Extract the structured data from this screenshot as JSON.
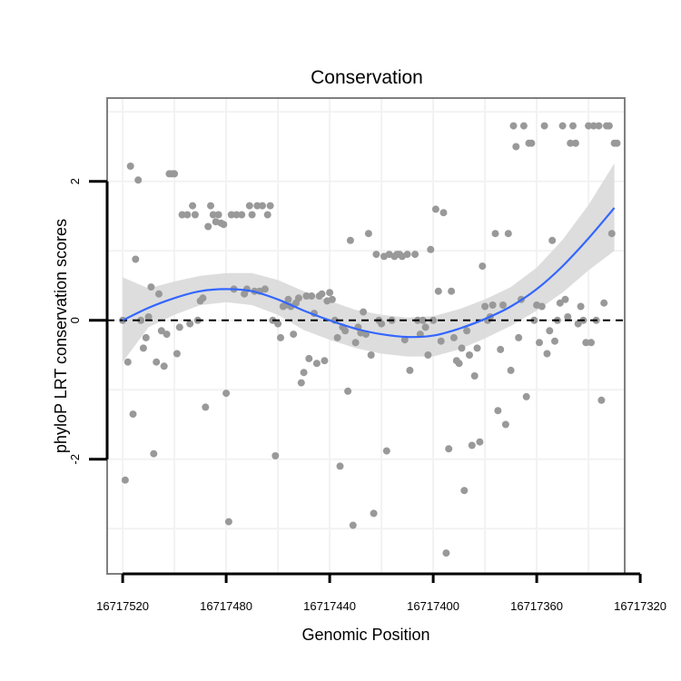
{
  "chart_data": {
    "type": "scatter",
    "title": "Conservation",
    "xlabel": "Genomic Position",
    "ylabel": "phyloP LRT conservation scores",
    "x_reversed": true,
    "xlim": [
      16717526,
      16717326
    ],
    "ylim": [
      -3.65,
      3.2
    ],
    "x_ticks": [
      16717520,
      16717480,
      16717440,
      16717400,
      16717360,
      16717320
    ],
    "x_tick_labels": [
      "16717520",
      "16717480",
      "16717440",
      "16717400",
      "16717360",
      "16717320"
    ],
    "y_ticks": [
      2,
      0,
      -2
    ],
    "y_tick_labels": [
      "2",
      "0",
      "-2"
    ],
    "grid": true,
    "reference_line": {
      "y": 0,
      "style": "dashed",
      "color": "#000000"
    },
    "colors": {
      "points": "#999999",
      "smooth": "#3366ff",
      "ribbon": "#d9d9d9",
      "grid": "#f2f2f2",
      "frame": "#7f7f7f",
      "axis": "#000000"
    },
    "points": [
      {
        "x": 16717520,
        "y": 0.0
      },
      {
        "x": 16717519,
        "y": -2.3
      },
      {
        "x": 16717518,
        "y": -0.6
      },
      {
        "x": 16717517,
        "y": 2.22
      },
      {
        "x": 16717516,
        "y": -1.35
      },
      {
        "x": 16717515,
        "y": 0.88
      },
      {
        "x": 16717514,
        "y": 2.02
      },
      {
        "x": 16717513,
        "y": 0.0
      },
      {
        "x": 16717512,
        "y": -0.4
      },
      {
        "x": 16717511,
        "y": -0.25
      },
      {
        "x": 16717510,
        "y": 0.05
      },
      {
        "x": 16717509,
        "y": 0.48
      },
      {
        "x": 16717508,
        "y": -1.92
      },
      {
        "x": 16717507,
        "y": -0.6
      },
      {
        "x": 16717506,
        "y": 0.38
      },
      {
        "x": 16717505,
        "y": -0.15
      },
      {
        "x": 16717504,
        "y": -0.66
      },
      {
        "x": 16717503,
        "y": -0.2
      },
      {
        "x": 16717502,
        "y": 2.11
      },
      {
        "x": 16717501,
        "y": 2.11
      },
      {
        "x": 16717500,
        "y": 2.11
      },
      {
        "x": 16717499,
        "y": -0.48
      },
      {
        "x": 16717498,
        "y": -0.1
      },
      {
        "x": 16717497,
        "y": 1.52
      },
      {
        "x": 16717495,
        "y": 1.52
      },
      {
        "x": 16717494,
        "y": -0.05
      },
      {
        "x": 16717493,
        "y": 1.65
      },
      {
        "x": 16717492,
        "y": 1.52
      },
      {
        "x": 16717491,
        "y": 0.0
      },
      {
        "x": 16717490,
        "y": 0.28
      },
      {
        "x": 16717489,
        "y": 0.32
      },
      {
        "x": 16717488,
        "y": -1.25
      },
      {
        "x": 16717487,
        "y": 1.35
      },
      {
        "x": 16717486,
        "y": 1.65
      },
      {
        "x": 16717485,
        "y": 1.52
      },
      {
        "x": 16717484,
        "y": 1.42
      },
      {
        "x": 16717483,
        "y": 1.52
      },
      {
        "x": 16717482,
        "y": 1.4
      },
      {
        "x": 16717481,
        "y": 1.38
      },
      {
        "x": 16717480,
        "y": -1.05
      },
      {
        "x": 16717479,
        "y": -2.9
      },
      {
        "x": 16717478,
        "y": 1.52
      },
      {
        "x": 16717477,
        "y": 0.45
      },
      {
        "x": 16717476,
        "y": 1.52
      },
      {
        "x": 16717474,
        "y": 1.52
      },
      {
        "x": 16717473,
        "y": 0.38
      },
      {
        "x": 16717472,
        "y": 0.45
      },
      {
        "x": 16717471,
        "y": 1.65
      },
      {
        "x": 16717470,
        "y": 1.52
      },
      {
        "x": 16717469,
        "y": 0.42
      },
      {
        "x": 16717468,
        "y": 1.65
      },
      {
        "x": 16717467,
        "y": 0.42
      },
      {
        "x": 16717466,
        "y": 1.65
      },
      {
        "x": 16717465,
        "y": 0.45
      },
      {
        "x": 16717464,
        "y": 1.52
      },
      {
        "x": 16717463,
        "y": 1.65
      },
      {
        "x": 16717462,
        "y": 0.0
      },
      {
        "x": 16717461,
        "y": -1.95
      },
      {
        "x": 16717460,
        "y": -0.05
      },
      {
        "x": 16717459,
        "y": -0.25
      },
      {
        "x": 16717458,
        "y": 0.2
      },
      {
        "x": 16717457,
        "y": 0.22
      },
      {
        "x": 16717456,
        "y": 0.3
      },
      {
        "x": 16717455,
        "y": 0.2
      },
      {
        "x": 16717454,
        "y": -0.2
      },
      {
        "x": 16717453,
        "y": 0.25
      },
      {
        "x": 16717452,
        "y": 0.32
      },
      {
        "x": 16717451,
        "y": -0.9
      },
      {
        "x": 16717450,
        "y": -0.75
      },
      {
        "x": 16717449,
        "y": 0.35
      },
      {
        "x": 16717448,
        "y": -0.55
      },
      {
        "x": 16717447,
        "y": 0.35
      },
      {
        "x": 16717446,
        "y": 0.1
      },
      {
        "x": 16717445,
        "y": -0.62
      },
      {
        "x": 16717444,
        "y": 0.35
      },
      {
        "x": 16717443,
        "y": 0.38
      },
      {
        "x": 16717442,
        "y": -0.58
      },
      {
        "x": 16717441,
        "y": 0.28
      },
      {
        "x": 16717440,
        "y": 0.4
      },
      {
        "x": 16717439,
        "y": 0.3
      },
      {
        "x": 16717438,
        "y": 0.0
      },
      {
        "x": 16717437,
        "y": -0.25
      },
      {
        "x": 16717436,
        "y": -2.1
      },
      {
        "x": 16717435,
        "y": -0.1
      },
      {
        "x": 16717434,
        "y": -0.15
      },
      {
        "x": 16717433,
        "y": -1.02
      },
      {
        "x": 16717432,
        "y": 1.15
      },
      {
        "x": 16717431,
        "y": -2.95
      },
      {
        "x": 16717430,
        "y": -0.32
      },
      {
        "x": 16717429,
        "y": -0.1
      },
      {
        "x": 16717428,
        "y": -0.18
      },
      {
        "x": 16717427,
        "y": 0.12
      },
      {
        "x": 16717426,
        "y": -0.2
      },
      {
        "x": 16717425,
        "y": 1.25
      },
      {
        "x": 16717424,
        "y": -0.5
      },
      {
        "x": 16717423,
        "y": -2.78
      },
      {
        "x": 16717422,
        "y": 0.95
      },
      {
        "x": 16717421,
        "y": 0.0
      },
      {
        "x": 16717420,
        "y": -0.05
      },
      {
        "x": 16717419,
        "y": 0.92
      },
      {
        "x": 16717418,
        "y": -1.88
      },
      {
        "x": 16717417,
        "y": 0.95
      },
      {
        "x": 16717416,
        "y": 0.0
      },
      {
        "x": 16717415,
        "y": 0.92
      },
      {
        "x": 16717414,
        "y": 0.95
      },
      {
        "x": 16717413,
        "y": 0.95
      },
      {
        "x": 16717412,
        "y": 0.92
      },
      {
        "x": 16717411,
        "y": -0.28
      },
      {
        "x": 16717410,
        "y": 0.95
      },
      {
        "x": 16717409,
        "y": -0.72
      },
      {
        "x": 16717407,
        "y": 0.95
      },
      {
        "x": 16717406,
        "y": 0.0
      },
      {
        "x": 16717405,
        "y": -0.2
      },
      {
        "x": 16717404,
        "y": 0.0
      },
      {
        "x": 16717403,
        "y": -0.1
      },
      {
        "x": 16717402,
        "y": -0.5
      },
      {
        "x": 16717401,
        "y": 1.02
      },
      {
        "x": 16717400,
        "y": 0.0
      },
      {
        "x": 16717399,
        "y": 1.6
      },
      {
        "x": 16717398,
        "y": 0.42
      },
      {
        "x": 16717397,
        "y": -0.3
      },
      {
        "x": 16717396,
        "y": 1.55
      },
      {
        "x": 16717395,
        "y": -3.35
      },
      {
        "x": 16717394,
        "y": -1.85
      },
      {
        "x": 16717393,
        "y": 0.42
      },
      {
        "x": 16717392,
        "y": -0.25
      },
      {
        "x": 16717391,
        "y": -0.58
      },
      {
        "x": 16717390,
        "y": -0.62
      },
      {
        "x": 16717389,
        "y": -0.4
      },
      {
        "x": 16717388,
        "y": -2.45
      },
      {
        "x": 16717387,
        "y": -0.15
      },
      {
        "x": 16717386,
        "y": -0.5
      },
      {
        "x": 16717385,
        "y": -1.8
      },
      {
        "x": 16717384,
        "y": -0.8
      },
      {
        "x": 16717383,
        "y": -0.4
      },
      {
        "x": 16717382,
        "y": -1.75
      },
      {
        "x": 16717381,
        "y": 0.78
      },
      {
        "x": 16717380,
        "y": 0.2
      },
      {
        "x": 16717379,
        "y": 0.0
      },
      {
        "x": 16717378,
        "y": 0.05
      },
      {
        "x": 16717377,
        "y": 0.22
      },
      {
        "x": 16717376,
        "y": 1.25
      },
      {
        "x": 16717375,
        "y": -1.3
      },
      {
        "x": 16717374,
        "y": -0.42
      },
      {
        "x": 16717373,
        "y": 0.22
      },
      {
        "x": 16717372,
        "y": -1.5
      },
      {
        "x": 16717371,
        "y": 1.25
      },
      {
        "x": 16717370,
        "y": -0.72
      },
      {
        "x": 16717369,
        "y": 2.8
      },
      {
        "x": 16717368,
        "y": 2.5
      },
      {
        "x": 16717367,
        "y": -0.25
      },
      {
        "x": 16717366,
        "y": 0.3
      },
      {
        "x": 16717365,
        "y": 2.8
      },
      {
        "x": 16717364,
        "y": -1.1
      },
      {
        "x": 16717363,
        "y": 2.55
      },
      {
        "x": 16717362,
        "y": 2.55
      },
      {
        "x": 16717361,
        "y": 0.0
      },
      {
        "x": 16717360,
        "y": 0.22
      },
      {
        "x": 16717359,
        "y": -0.32
      },
      {
        "x": 16717358,
        "y": 0.2
      },
      {
        "x": 16717357,
        "y": 2.8
      },
      {
        "x": 16717356,
        "y": -0.48
      },
      {
        "x": 16717355,
        "y": -0.15
      },
      {
        "x": 16717354,
        "y": 1.15
      },
      {
        "x": 16717353,
        "y": -0.3
      },
      {
        "x": 16717352,
        "y": 0.0
      },
      {
        "x": 16717351,
        "y": 0.25
      },
      {
        "x": 16717350,
        "y": 2.8
      },
      {
        "x": 16717349,
        "y": 0.3
      },
      {
        "x": 16717348,
        "y": 0.05
      },
      {
        "x": 16717347,
        "y": 2.55
      },
      {
        "x": 16717346,
        "y": 2.8
      },
      {
        "x": 16717345,
        "y": 2.55
      },
      {
        "x": 16717344,
        "y": -0.05
      },
      {
        "x": 16717343,
        "y": 0.2
      },
      {
        "x": 16717342,
        "y": 0.0
      },
      {
        "x": 16717341,
        "y": -0.32
      },
      {
        "x": 16717340,
        "y": 2.8
      },
      {
        "x": 16717339,
        "y": -0.32
      },
      {
        "x": 16717338,
        "y": 2.8
      },
      {
        "x": 16717337,
        "y": 0.0
      },
      {
        "x": 16717336,
        "y": 2.8
      },
      {
        "x": 16717335,
        "y": -1.15
      },
      {
        "x": 16717334,
        "y": 0.25
      },
      {
        "x": 16717333,
        "y": 2.8
      },
      {
        "x": 16717332,
        "y": 2.8
      },
      {
        "x": 16717331,
        "y": 1.25
      },
      {
        "x": 16717330,
        "y": 2.55
      },
      {
        "x": 16717329,
        "y": 2.55
      }
    ],
    "smooth": {
      "x": [
        16717520,
        16717510,
        16717500,
        16717490,
        16717480,
        16717470,
        16717460,
        16717450,
        16717440,
        16717430,
        16717420,
        16717410,
        16717400,
        16717390,
        16717380,
        16717370,
        16717360,
        16717350,
        16717340,
        16717330
      ],
      "y": [
        0.0,
        0.18,
        0.32,
        0.42,
        0.45,
        0.42,
        0.3,
        0.14,
        0.0,
        -0.12,
        -0.2,
        -0.24,
        -0.22,
        -0.12,
        0.02,
        0.2,
        0.45,
        0.78,
        1.18,
        1.62
      ],
      "lower": [
        -0.6,
        -0.1,
        0.08,
        0.22,
        0.26,
        0.22,
        0.08,
        -0.14,
        -0.28,
        -0.4,
        -0.48,
        -0.52,
        -0.52,
        -0.42,
        -0.26,
        -0.08,
        0.14,
        0.4,
        0.72,
        1.0
      ],
      "upper": [
        0.62,
        0.46,
        0.56,
        0.64,
        0.68,
        0.68,
        0.58,
        0.42,
        0.28,
        0.15,
        0.08,
        0.04,
        0.06,
        0.16,
        0.3,
        0.48,
        0.76,
        1.16,
        1.66,
        2.26
      ]
    }
  }
}
